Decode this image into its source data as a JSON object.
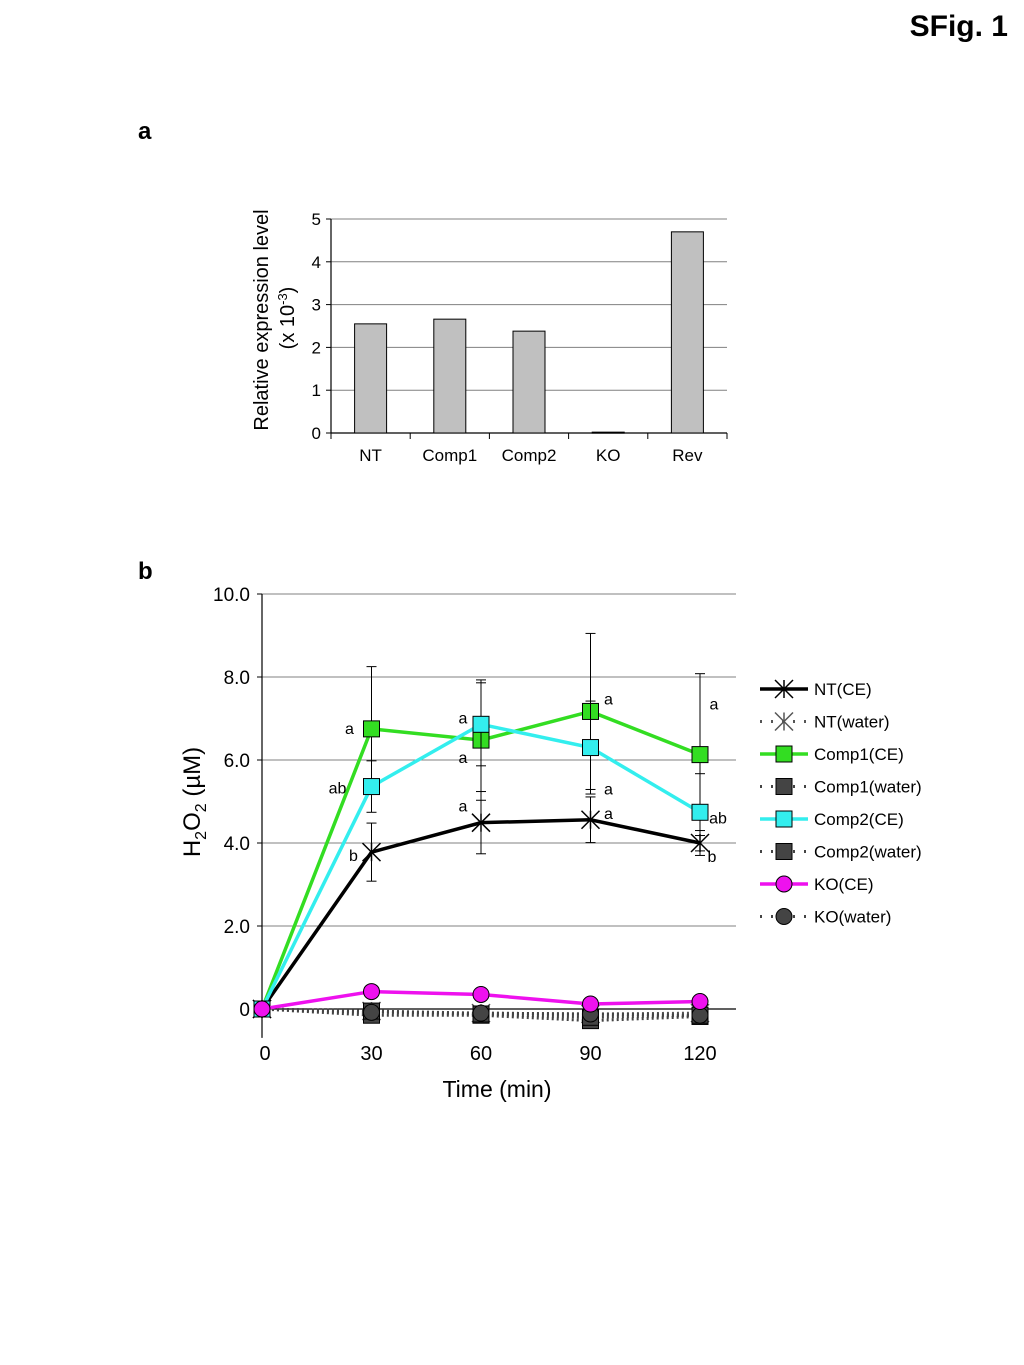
{
  "figure": {
    "title": "SFig. 1",
    "panels": [
      "a",
      "b"
    ]
  },
  "chart_data": [
    {
      "type": "bar",
      "panel": "a",
      "ylabel_line1": "Relative expression level",
      "ylabel_line2_prefix": "(x 10",
      "ylabel_line2_sup": "-3",
      "ylabel_line2_suffix": ")",
      "categories": [
        "NT",
        "Comp1",
        "Comp2",
        "KO",
        "Rev"
      ],
      "values": [
        2.55,
        2.66,
        2.38,
        0.02,
        4.7
      ],
      "ylim": [
        0,
        5
      ],
      "yticks": [
        "0",
        "1",
        "2",
        "3",
        "4",
        "5"
      ],
      "grid": true,
      "colors": {
        "bar": "#c0c0c0",
        "grid": "#808080"
      }
    },
    {
      "type": "line",
      "panel": "b",
      "xlabel": "Time (min)",
      "ylabel_parts": [
        "H",
        "2",
        "O",
        "2",
        " (µM)"
      ],
      "x": [
        0,
        30,
        60,
        90,
        120
      ],
      "xticks": [
        "0",
        "30",
        "60",
        "90",
        "120"
      ],
      "yticks": [
        "0",
        "2.0",
        "4.0",
        "6.0",
        "8.0",
        "10.0"
      ],
      "ylim": [
        -0.6,
        10.0
      ],
      "grid": true,
      "legend_position": "right",
      "series": [
        {
          "name": "NT(CE)",
          "values": [
            0,
            3.78,
            4.49,
            4.56,
            4.0
          ],
          "err": [
            0,
            0.7,
            0.75,
            0.55,
            0.3
          ],
          "color": "#000000",
          "marker": "asterisk",
          "style": "solid",
          "labels": [
            "",
            "b",
            "a",
            "a",
            "b"
          ]
        },
        {
          "name": "NT(water)",
          "values": [
            0,
            -0.05,
            -0.1,
            -0.12,
            -0.1
          ],
          "color": "#555555",
          "marker": "asterisk",
          "style": "dotted"
        },
        {
          "name": "Comp1(CE)",
          "values": [
            0,
            6.75,
            6.48,
            7.17,
            6.13
          ],
          "err": [
            0,
            1.5,
            1.45,
            1.88,
            1.95
          ],
          "color": "#33dd22",
          "marker": "square",
          "style": "solid",
          "labels": [
            "",
            "a",
            "a",
            "a",
            "a"
          ]
        },
        {
          "name": "Comp1(water)",
          "values": [
            0,
            -0.15,
            -0.15,
            -0.28,
            -0.18
          ],
          "color": "#444444",
          "marker": "square",
          "style": "dotted"
        },
        {
          "name": "Comp2(CE)",
          "values": [
            0,
            5.36,
            6.86,
            6.3,
            4.74
          ],
          "err": [
            0,
            0.62,
            1.0,
            1.12,
            0.93
          ],
          "color": "#33eeee",
          "marker": "square",
          "style": "solid",
          "labels": [
            "",
            "ab",
            "a",
            "a",
            "ab"
          ]
        },
        {
          "name": "Comp2(water)",
          "values": [
            0,
            -0.05,
            -0.12,
            -0.2,
            -0.15
          ],
          "color": "#444444",
          "marker": "square",
          "style": "dotted"
        },
        {
          "name": "KO(CE)",
          "values": [
            0,
            0.42,
            0.35,
            0.12,
            0.18
          ],
          "err": [
            0,
            0.12,
            0.08,
            0.06,
            0.06
          ],
          "color": "#ee11ee",
          "marker": "circle",
          "style": "solid"
        },
        {
          "name": "KO(water)",
          "values": [
            0,
            -0.08,
            -0.1,
            -0.12,
            -0.15
          ],
          "color": "#444444",
          "marker": "circle",
          "style": "dotted"
        }
      ]
    }
  ]
}
